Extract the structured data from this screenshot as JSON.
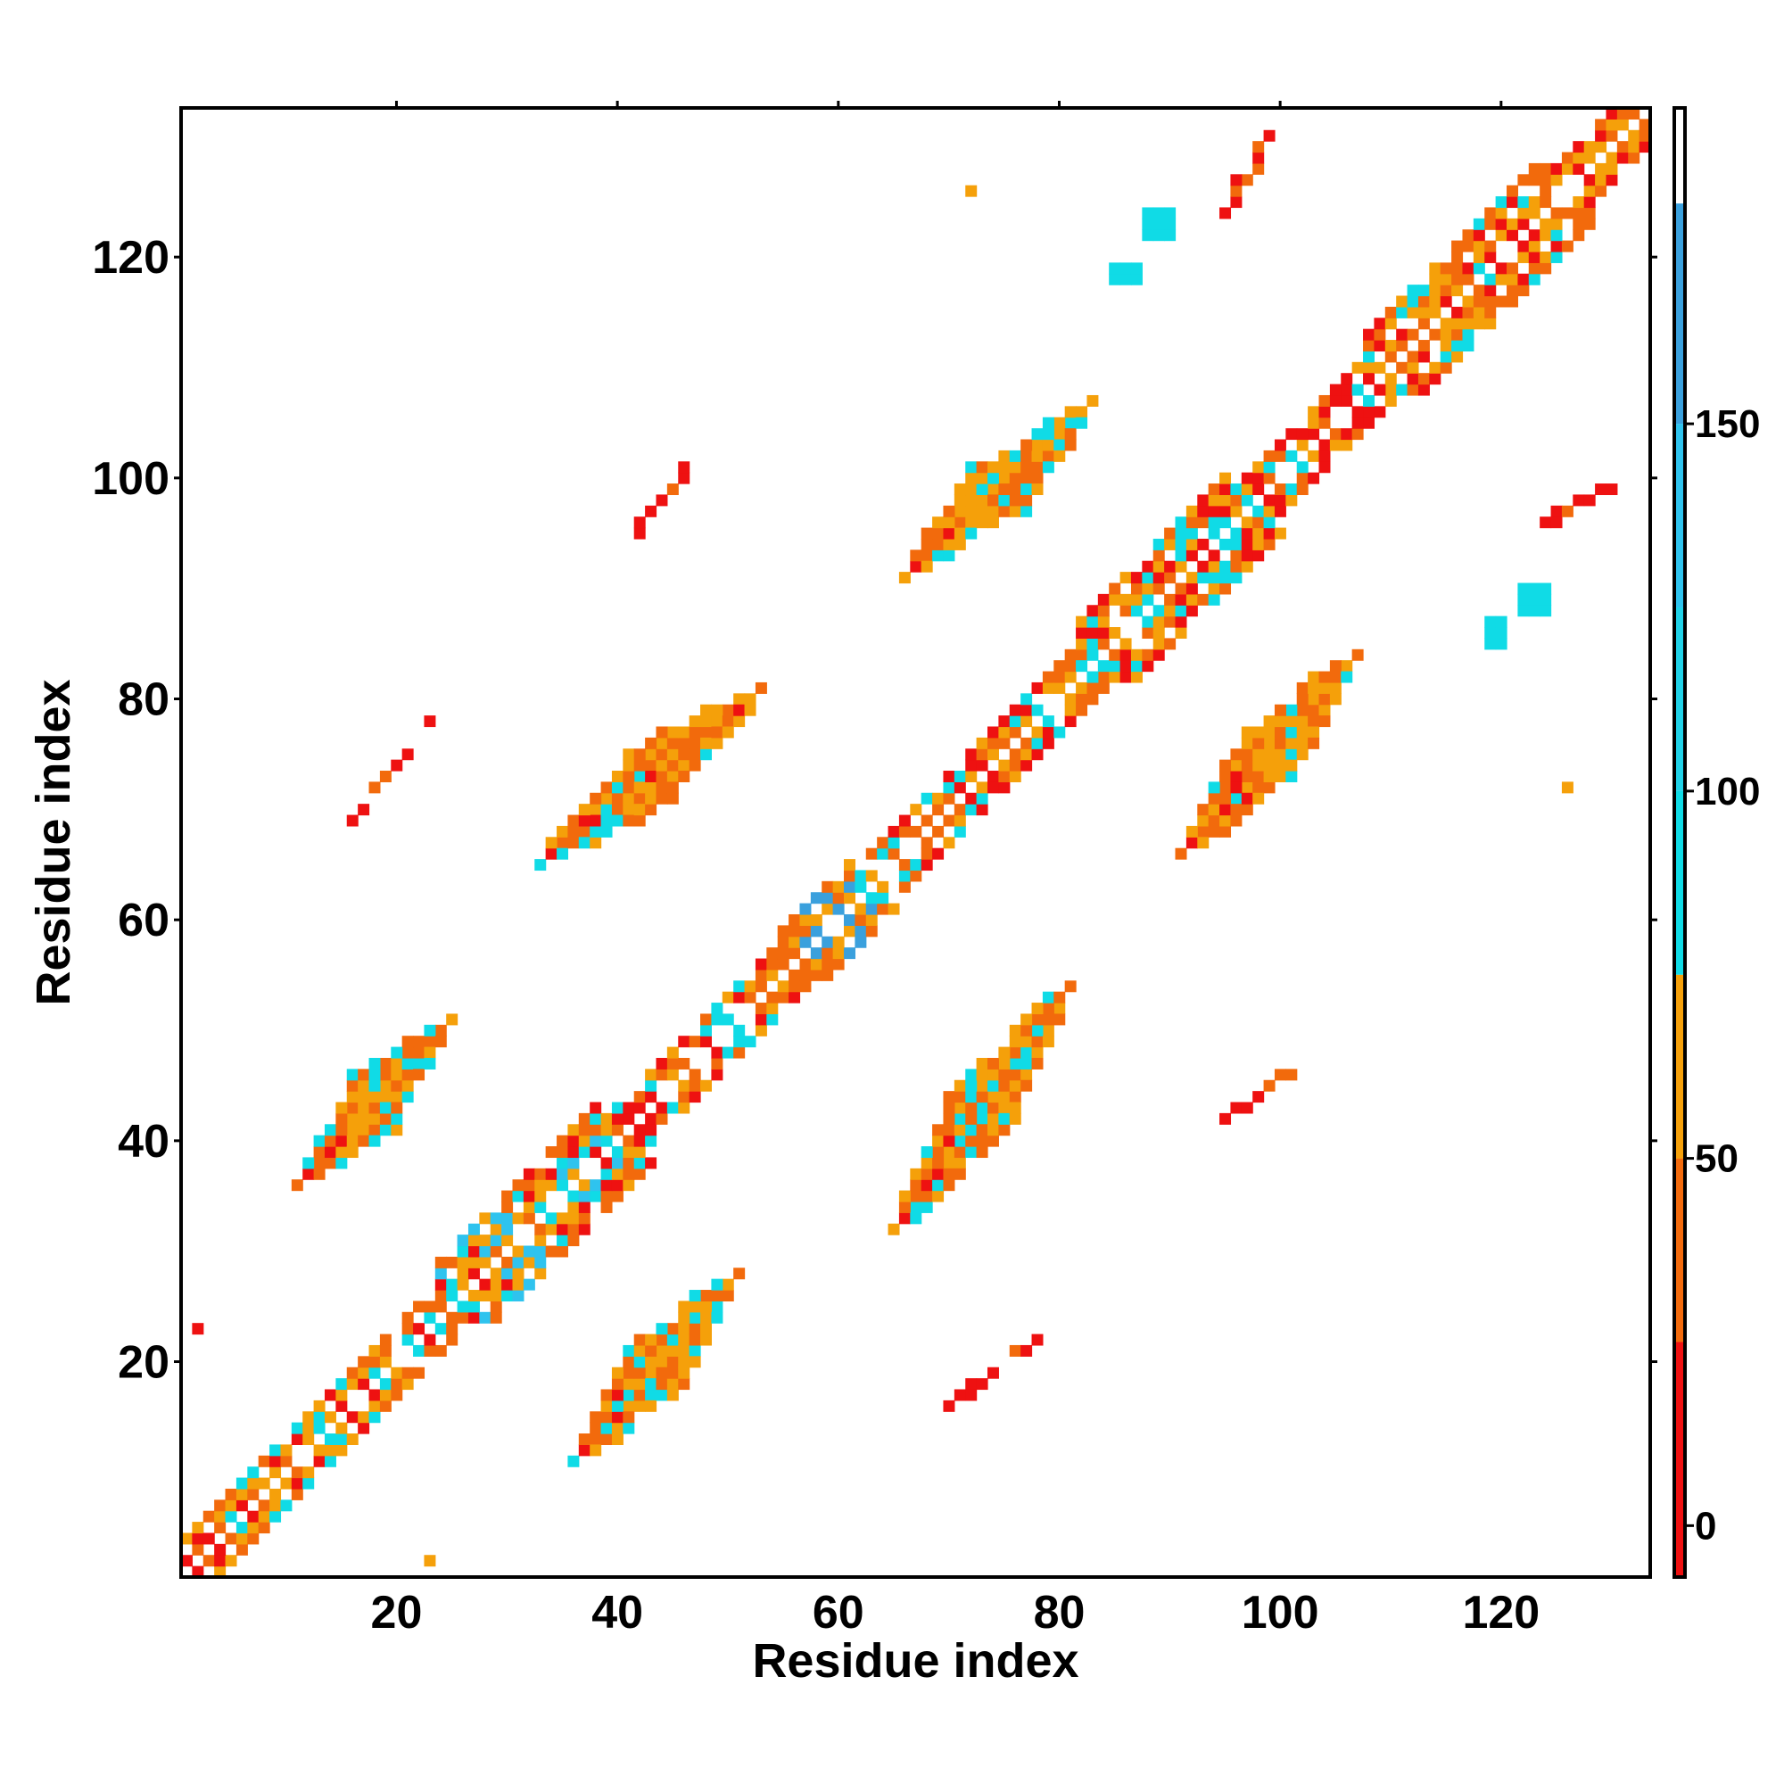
{
  "chart_data": {
    "type": "heatmap",
    "title": "",
    "xlabel": "Residue index",
    "ylabel": "Residue index",
    "xlim": [
      1,
      133
    ],
    "ylim": [
      1,
      133
    ],
    "x_ticks": [
      20,
      40,
      60,
      80,
      100,
      120
    ],
    "y_ticks": [
      20,
      40,
      60,
      80,
      100,
      120
    ],
    "grid": false,
    "colorbar": {
      "range": [
        -7,
        193
      ],
      "ticks": [
        0,
        50,
        100,
        150
      ],
      "bands": [
        {
          "from": -7,
          "to": 25,
          "color": "#ee1111"
        },
        {
          "from": 25,
          "to": 50,
          "color": "#f26a0c"
        },
        {
          "from": 50,
          "to": 75,
          "color": "#f5a00a"
        },
        {
          "from": 75,
          "to": 100,
          "color": "#10dbe6"
        },
        {
          "from": 100,
          "to": 125,
          "color": "#21d2e8"
        },
        {
          "from": 125,
          "to": 150,
          "color": "#2fc3ee"
        },
        {
          "from": 150,
          "to": 180,
          "color": "#3aa0dd"
        },
        {
          "from": 180,
          "to": 193,
          "color": "#ffffff"
        }
      ]
    },
    "diagonal_segments": [
      {
        "from": 1,
        "to": 12,
        "width": 3,
        "colors": [
          "#f26a0c",
          "#f5a00a",
          "#ee1111",
          "#10dbe6"
        ]
      },
      {
        "from": 12,
        "to": 24,
        "width": 3,
        "colors": [
          "#f26a0c",
          "#ee1111",
          "#f5a00a",
          "#10dbe6"
        ]
      },
      {
        "from": 24,
        "to": 38,
        "width": 5,
        "colors": [
          "#10dbe6",
          "#f26a0c",
          "#f5a00a",
          "#2fc3ee",
          "#ee1111"
        ]
      },
      {
        "from": 38,
        "to": 55,
        "width": 3,
        "colors": [
          "#f26a0c",
          "#ee1111",
          "#f5a00a",
          "#10dbe6"
        ]
      },
      {
        "from": 55,
        "to": 61,
        "width": 4,
        "colors": [
          "#3aa0dd",
          "#f26a0c",
          "#f5a00a"
        ]
      },
      {
        "from": 61,
        "to": 82,
        "width": 3,
        "colors": [
          "#f26a0c",
          "#f5a00a",
          "#10dbe6",
          "#ee1111"
        ]
      },
      {
        "from": 82,
        "to": 95,
        "width": 5,
        "colors": [
          "#10dbe6",
          "#f26a0c",
          "#ee1111",
          "#f5a00a"
        ]
      },
      {
        "from": 95,
        "to": 108,
        "width": 3,
        "colors": [
          "#f26a0c",
          "#ee1111",
          "#f5a00a",
          "#10dbe6"
        ]
      },
      {
        "from": 108,
        "to": 124,
        "width": 5,
        "colors": [
          "#f26a0c",
          "#10dbe6",
          "#ee1111",
          "#f5a00a"
        ]
      },
      {
        "from": 124,
        "to": 133,
        "width": 3,
        "colors": [
          "#f26a0c",
          "#ee1111",
          "#f5a00a"
        ]
      }
    ],
    "offdiagonal_blobs": [
      {
        "x": [
          12,
          24
        ],
        "y": [
          37,
          50
        ],
        "colors": [
          "#ee1111",
          "#f26a0c",
          "#f5a00a",
          "#10dbe6"
        ]
      },
      {
        "x": [
          37,
          50
        ],
        "y": [
          12,
          27
        ],
        "colors": [
          "#ee1111",
          "#f26a0c",
          "#f5a00a",
          "#10dbe6"
        ]
      },
      {
        "x": [
          34,
          52
        ],
        "y": [
          66,
          80
        ],
        "colors": [
          "#ee1111",
          "#f26a0c",
          "#f5a00a",
          "#10dbe6"
        ]
      },
      {
        "x": [
          66,
          80
        ],
        "y": [
          33,
          53
        ],
        "colors": [
          "#ee1111",
          "#f26a0c",
          "#f5a00a",
          "#10dbe6"
        ]
      },
      {
        "x": [
          67,
          82
        ],
        "y": [
          92,
          106
        ],
        "colors": [
          "#ee1111",
          "#f26a0c",
          "#f5a00a",
          "#10dbe6"
        ]
      },
      {
        "x": [
          92,
          106
        ],
        "y": [
          67,
          83
        ],
        "colors": [
          "#ee1111",
          "#f26a0c",
          "#f5a00a",
          "#10dbe6"
        ]
      },
      {
        "x": [
          16,
          23
        ],
        "y": [
          69,
          78
        ],
        "colors": [
          "#ee1111",
          "#f26a0c"
        ]
      },
      {
        "x": [
          41,
          47
        ],
        "y": [
          94,
          102
        ],
        "colors": [
          "#ee1111",
          "#f26a0c"
        ]
      },
      {
        "x": [
          70,
          78
        ],
        "y": [
          16,
          22
        ],
        "colors": [
          "#ee1111",
          "#f26a0c"
        ]
      },
      {
        "x": [
          94,
          102
        ],
        "y": [
          41,
          47
        ],
        "colors": [
          "#ee1111",
          "#f26a0c"
        ]
      },
      {
        "x": [
          95,
          99
        ],
        "y": [
          124,
          131
        ],
        "colors": [
          "#ee1111",
          "#f26a0c"
        ]
      },
      {
        "x": [
          123,
          130
        ],
        "y": [
          96,
          99
        ],
        "colors": [
          "#ee1111",
          "#f26a0c"
        ]
      },
      {
        "x": [
          88,
          90
        ],
        "y": [
          122,
          124
        ],
        "colors": [
          "#10dbe6"
        ]
      },
      {
        "x": [
          85,
          87
        ],
        "y": [
          118,
          119
        ],
        "colors": [
          "#10dbe6"
        ]
      },
      {
        "x": [
          119,
          120
        ],
        "y": [
          85,
          87
        ],
        "colors": [
          "#10dbe6"
        ]
      },
      {
        "x": [
          122,
          124
        ],
        "y": [
          88,
          90
        ],
        "colors": [
          "#10dbe6"
        ]
      },
      {
        "x": [
          72,
          72
        ],
        "y": [
          126,
          126
        ],
        "colors": [
          "#f5a00a"
        ]
      },
      {
        "x": [
          126,
          126
        ],
        "y": [
          72,
          72
        ],
        "colors": [
          "#f5a00a"
        ]
      },
      {
        "x": [
          23,
          23
        ],
        "y": [
          2,
          2
        ],
        "colors": [
          "#f5a00a"
        ]
      },
      {
        "x": [
          2,
          2
        ],
        "y": [
          23,
          23
        ],
        "colors": [
          "#ee1111"
        ]
      }
    ]
  }
}
